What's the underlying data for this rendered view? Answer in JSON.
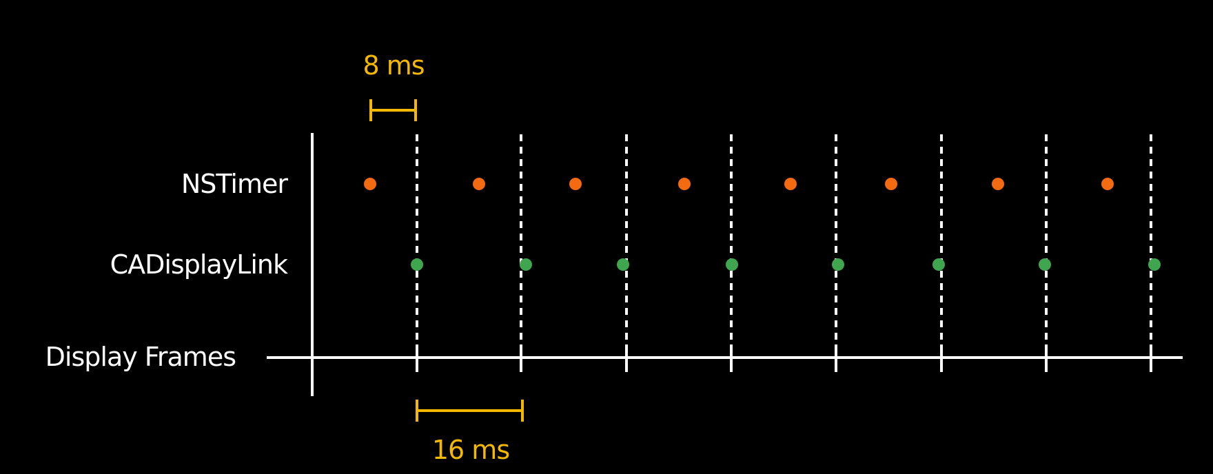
{
  "colors": {
    "background": "#000000",
    "foreground": "#ffffff",
    "accent": "#f5b800",
    "nstimer_dot": "#f36a10",
    "cadisplaylink_dot": "#3fa64f"
  },
  "rows": {
    "nstimer": "NSTimer",
    "cadisplaylink": "CADisplayLink",
    "display_frames": "Display Frames"
  },
  "measures": {
    "short": "8 ms",
    "long": "16 ms"
  },
  "timeline": {
    "frame_count": 8,
    "nstimer_event_count": 8,
    "cadisplaylink_event_count": 8
  }
}
